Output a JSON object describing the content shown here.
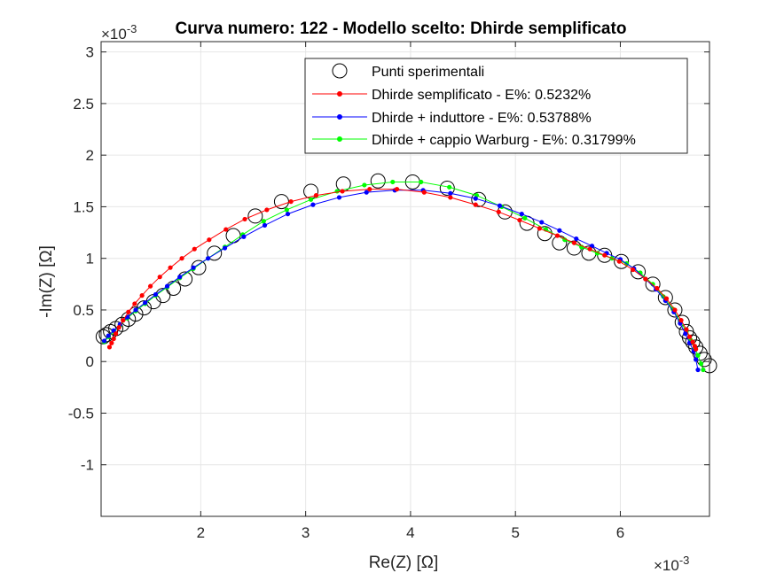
{
  "chart_data": {
    "type": "scatter",
    "title": "Curva numero: 122 - Modello scelto: Dhirde semplificato",
    "xlabel": "Re(Z) [Ω]",
    "ylabel": "-Im(Z) [Ω]",
    "x_multiplier": "×10",
    "x_exponent": "-3",
    "y_multiplier": "×10",
    "y_exponent": "-3",
    "xlim": [
      1.05,
      6.85
    ],
    "ylim": [
      -1.5,
      3.1
    ],
    "xticks": [
      "2",
      "3",
      "4",
      "5",
      "6"
    ],
    "xtick_values": [
      2,
      3,
      4,
      5,
      6
    ],
    "yticks": [
      "3",
      "2.5",
      "2",
      "1.5",
      "1",
      "0.5",
      "0",
      "-0.5",
      "-1"
    ],
    "ytick_values": [
      3,
      2.5,
      2,
      1.5,
      1,
      0.5,
      0,
      -0.5,
      -1
    ],
    "grid": true,
    "legend_position": "top-right",
    "series": [
      {
        "name": "Punti sperimentali",
        "style": "circle",
        "color": "#000000",
        "x": [
          1.07,
          1.1,
          1.14,
          1.19,
          1.25,
          1.31,
          1.38,
          1.46,
          1.55,
          1.64,
          1.74,
          1.85,
          1.98,
          2.13,
          2.31,
          2.52,
          2.77,
          3.05,
          3.36,
          3.69,
          4.02,
          4.35,
          4.65,
          4.9,
          5.11,
          5.28,
          5.42,
          5.56,
          5.7,
          5.85,
          6.01,
          6.17,
          6.31,
          6.43,
          6.52,
          6.59,
          6.63,
          6.66,
          6.69,
          6.72,
          6.76,
          6.8,
          6.85
        ],
        "y": [
          0.24,
          0.26,
          0.29,
          0.32,
          0.36,
          0.41,
          0.46,
          0.52,
          0.58,
          0.64,
          0.71,
          0.8,
          0.91,
          1.05,
          1.22,
          1.41,
          1.55,
          1.65,
          1.72,
          1.75,
          1.74,
          1.68,
          1.57,
          1.45,
          1.34,
          1.24,
          1.15,
          1.1,
          1.05,
          1.03,
          0.97,
          0.87,
          0.75,
          0.62,
          0.5,
          0.38,
          0.29,
          0.23,
          0.19,
          0.14,
          0.08,
          0.02,
          -0.04
        ]
      },
      {
        "name": "Dhirde semplificato - E%: 0.5232%",
        "style": "line-dot",
        "color": "#ff0000",
        "x": [
          1.13,
          1.15,
          1.17,
          1.19,
          1.22,
          1.26,
          1.31,
          1.37,
          1.44,
          1.52,
          1.61,
          1.71,
          1.82,
          1.94,
          2.08,
          2.24,
          2.42,
          2.63,
          2.86,
          3.1,
          3.35,
          3.61,
          3.87,
          4.13,
          4.38,
          4.62,
          4.84,
          5.04,
          5.23,
          5.4,
          5.56,
          5.71,
          5.85,
          5.99,
          6.12,
          6.24,
          6.35,
          6.44,
          6.52,
          6.58,
          6.63,
          6.66,
          6.69,
          6.71,
          6.72
        ],
        "y": [
          0.14,
          0.18,
          0.22,
          0.27,
          0.33,
          0.4,
          0.48,
          0.56,
          0.64,
          0.73,
          0.82,
          0.91,
          1.0,
          1.09,
          1.18,
          1.28,
          1.38,
          1.47,
          1.55,
          1.61,
          1.65,
          1.67,
          1.67,
          1.64,
          1.59,
          1.52,
          1.45,
          1.37,
          1.29,
          1.22,
          1.15,
          1.09,
          1.03,
          0.97,
          0.89,
          0.8,
          0.71,
          0.61,
          0.5,
          0.4,
          0.31,
          0.24,
          0.19,
          0.15,
          0.12
        ]
      },
      {
        "name": "Dhirde + induttore - E%: 0.53788%",
        "style": "line-dot",
        "color": "#0000ff",
        "x": [
          1.08,
          1.12,
          1.17,
          1.23,
          1.3,
          1.38,
          1.47,
          1.57,
          1.68,
          1.8,
          1.93,
          2.07,
          2.23,
          2.41,
          2.61,
          2.83,
          3.07,
          3.32,
          3.58,
          3.85,
          4.12,
          4.38,
          4.62,
          4.85,
          5.06,
          5.25,
          5.42,
          5.58,
          5.73,
          5.87,
          6.0,
          6.13,
          6.24,
          6.34,
          6.43,
          6.51,
          6.57,
          6.62,
          6.66,
          6.7,
          6.72,
          6.74
        ],
        "y": [
          0.2,
          0.25,
          0.3,
          0.36,
          0.43,
          0.5,
          0.57,
          0.65,
          0.73,
          0.82,
          0.91,
          1.0,
          1.1,
          1.21,
          1.32,
          1.43,
          1.52,
          1.59,
          1.64,
          1.66,
          1.66,
          1.63,
          1.58,
          1.51,
          1.43,
          1.35,
          1.27,
          1.19,
          1.12,
          1.05,
          0.99,
          0.9,
          0.8,
          0.7,
          0.59,
          0.48,
          0.37,
          0.27,
          0.18,
          0.1,
          0.02,
          -0.08
        ]
      },
      {
        "name": "Dhirde + cappio Warburg - E%: 0.31799%",
        "style": "line-dot",
        "color": "#00ff00",
        "x": [
          1.08,
          1.12,
          1.17,
          1.23,
          1.3,
          1.38,
          1.47,
          1.57,
          1.68,
          1.8,
          1.93,
          2.07,
          2.23,
          2.4,
          2.6,
          2.82,
          3.05,
          3.3,
          3.56,
          3.83,
          4.1,
          4.37,
          4.63,
          4.87,
          5.09,
          5.29,
          5.47,
          5.63,
          5.78,
          5.92,
          6.06,
          6.19,
          6.31,
          6.41,
          6.5,
          6.57,
          6.63,
          6.67,
          6.71,
          6.74,
          6.77,
          6.79
        ],
        "y": [
          0.19,
          0.24,
          0.29,
          0.35,
          0.42,
          0.49,
          0.56,
          0.64,
          0.72,
          0.81,
          0.9,
          1.0,
          1.11,
          1.23,
          1.36,
          1.47,
          1.57,
          1.65,
          1.71,
          1.74,
          1.74,
          1.69,
          1.61,
          1.5,
          1.39,
          1.28,
          1.18,
          1.11,
          1.05,
          1.0,
          0.95,
          0.86,
          0.75,
          0.63,
          0.51,
          0.39,
          0.29,
          0.21,
          0.13,
          0.06,
          -0.02,
          -0.08
        ]
      }
    ]
  }
}
